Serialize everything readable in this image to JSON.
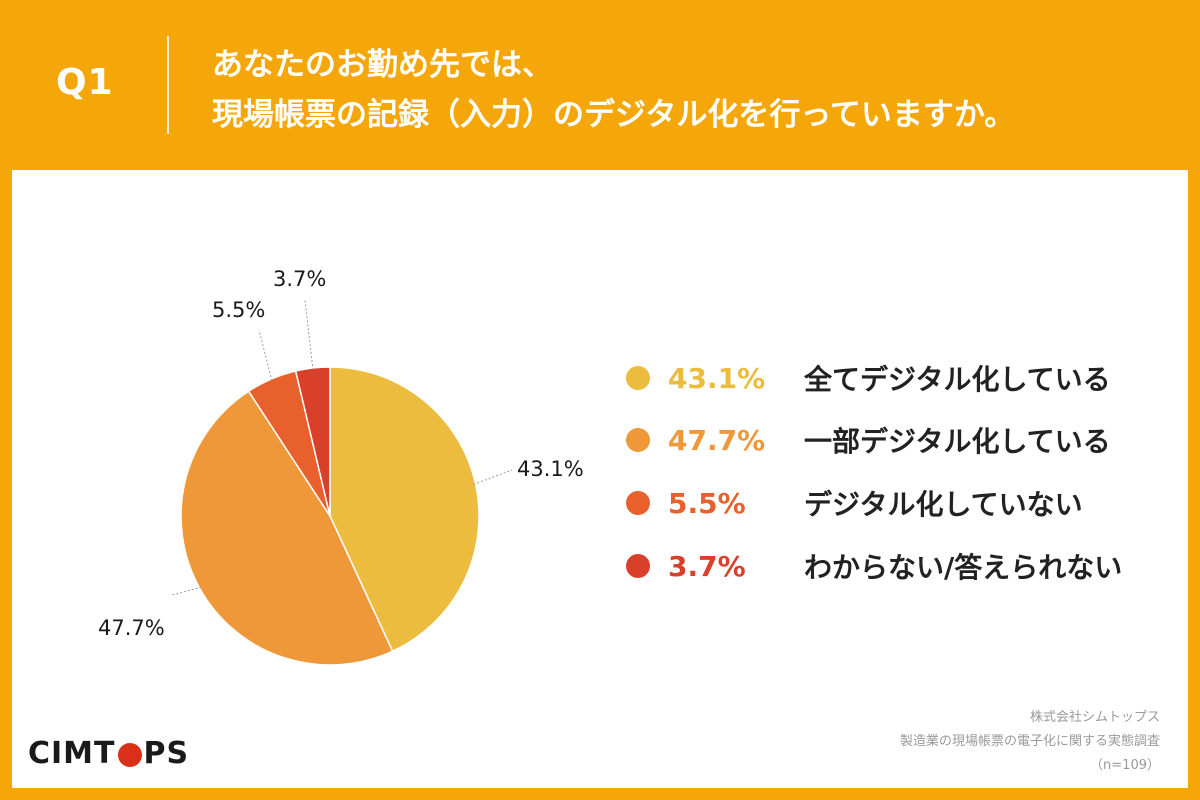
{
  "question": {
    "number": "Q1",
    "line1": "あなたのお勤め先では、",
    "line2": "現場帳票の記録（入力）のデジタル化を行っていますか。"
  },
  "chart_data": {
    "type": "pie",
    "series": [
      {
        "name": "全てデジタル化している",
        "value": 43.1,
        "label": "43.1%",
        "color": "#ECBC3E"
      },
      {
        "name": "一部デジタル化している",
        "value": 47.7,
        "label": "47.7%",
        "color": "#EF983A"
      },
      {
        "name": "デジタル化していない",
        "value": 5.5,
        "label": "5.5%",
        "color": "#E8612C"
      },
      {
        "name": "わからない/答えられない",
        "value": 3.7,
        "label": "3.7%",
        "color": "#D9402A"
      }
    ]
  },
  "footer": {
    "logo": [
      "CIMT",
      "PS"
    ],
    "source_lines": [
      "株式会社シムトップス",
      "製造業の現場帳票の電子化に関する実態調査",
      "（n=109）"
    ]
  }
}
